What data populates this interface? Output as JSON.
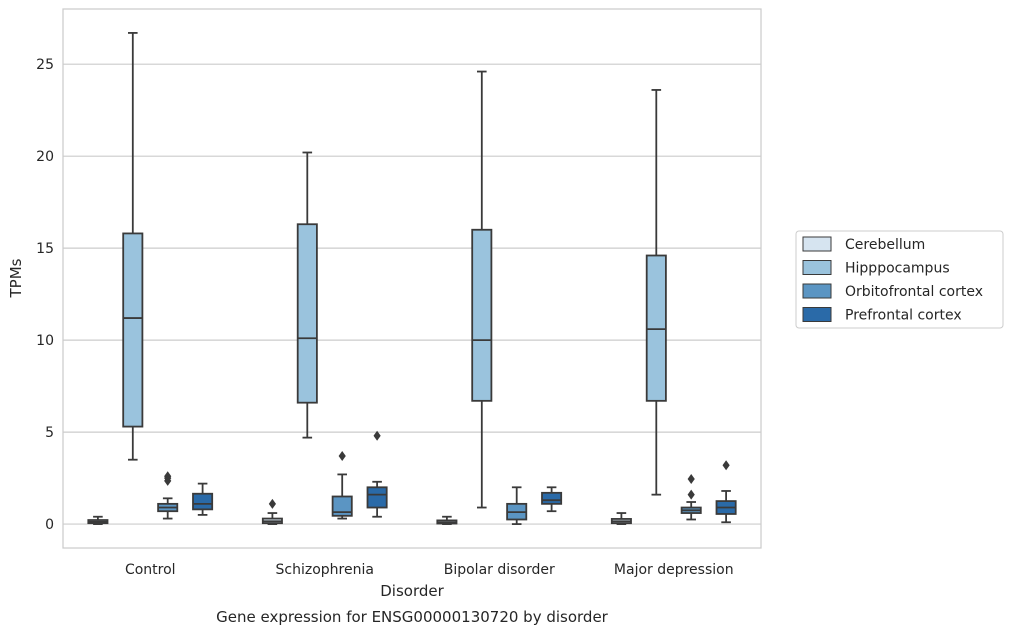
{
  "chart_data": {
    "type": "box",
    "caption": "Gene expression for ENSG00000130720 by disorder",
    "xlabel": "Disorder",
    "ylabel": "TPMs",
    "ylim": [
      -1.3,
      28
    ],
    "yticks": [
      0,
      5,
      10,
      15,
      20,
      25
    ],
    "grid": true,
    "legend_position": "right",
    "categories": [
      "Control",
      "Schizophrenia",
      "Bipolar disorder",
      "Major depression"
    ],
    "series": [
      {
        "name": "Cerebellum",
        "color": "#d6e4f0",
        "boxes": [
          {
            "whislo": 0.0,
            "q1": 0.05,
            "med": 0.12,
            "q3": 0.22,
            "whishi": 0.4,
            "fliers": []
          },
          {
            "whislo": 0.0,
            "q1": 0.05,
            "med": 0.15,
            "q3": 0.3,
            "whishi": 0.6,
            "fliers": [
              1.1
            ]
          },
          {
            "whislo": 0.0,
            "q1": 0.03,
            "med": 0.1,
            "q3": 0.2,
            "whishi": 0.4,
            "fliers": []
          },
          {
            "whislo": 0.0,
            "q1": 0.05,
            "med": 0.15,
            "q3": 0.28,
            "whishi": 0.6,
            "fliers": []
          }
        ]
      },
      {
        "name": "Hipppocampus",
        "color": "#9ac3dd",
        "boxes": [
          {
            "whislo": 3.5,
            "q1": 5.3,
            "med": 11.2,
            "q3": 15.8,
            "whishi": 26.7,
            "fliers": []
          },
          {
            "whislo": 4.7,
            "q1": 6.6,
            "med": 10.1,
            "q3": 16.3,
            "whishi": 20.2,
            "fliers": []
          },
          {
            "whislo": 0.9,
            "q1": 6.7,
            "med": 10.0,
            "q3": 16.0,
            "whishi": 24.6,
            "fliers": []
          },
          {
            "whislo": 1.6,
            "q1": 6.7,
            "med": 10.6,
            "q3": 14.6,
            "whishi": 23.6,
            "fliers": []
          }
        ]
      },
      {
        "name": "Orbitofrontal cortex",
        "color": "#5b95c3",
        "boxes": [
          {
            "whislo": 0.3,
            "q1": 0.7,
            "med": 0.9,
            "q3": 1.1,
            "whishi": 1.4,
            "fliers": [
              2.35,
              2.5,
              2.6
            ]
          },
          {
            "whislo": 0.3,
            "q1": 0.45,
            "med": 0.65,
            "q3": 1.5,
            "whishi": 2.7,
            "fliers": [
              3.7
            ]
          },
          {
            "whislo": 0.0,
            "q1": 0.25,
            "med": 0.65,
            "q3": 1.1,
            "whishi": 2.0,
            "fliers": []
          },
          {
            "whislo": 0.25,
            "q1": 0.6,
            "med": 0.75,
            "q3": 0.9,
            "whishi": 1.2,
            "fliers": [
              1.6,
              2.45
            ]
          }
        ]
      },
      {
        "name": "Prefrontal cortex",
        "color": "#2a6aa8",
        "boxes": [
          {
            "whislo": 0.5,
            "q1": 0.8,
            "med": 1.1,
            "q3": 1.65,
            "whishi": 2.2,
            "fliers": []
          },
          {
            "whislo": 0.4,
            "q1": 0.9,
            "med": 1.6,
            "q3": 2.0,
            "whishi": 2.3,
            "fliers": [
              4.8
            ]
          },
          {
            "whislo": 0.7,
            "q1": 1.1,
            "med": 1.3,
            "q3": 1.7,
            "whishi": 2.0,
            "fliers": []
          },
          {
            "whislo": 0.1,
            "q1": 0.55,
            "med": 0.9,
            "q3": 1.25,
            "whishi": 1.8,
            "fliers": [
              3.2
            ]
          }
        ]
      }
    ]
  }
}
